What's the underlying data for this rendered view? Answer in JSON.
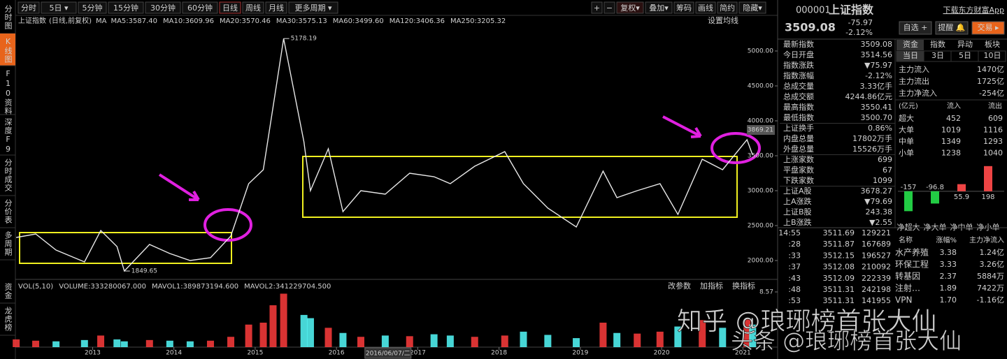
{
  "toolbar": {
    "periods": [
      {
        "label": "分时"
      },
      {
        "label": "5日 ▾"
      },
      {
        "label": "5分钟"
      },
      {
        "label": "15分钟"
      },
      {
        "label": "30分钟"
      },
      {
        "label": "60分钟"
      },
      {
        "label": "日线",
        "active": true
      },
      {
        "label": "周线"
      },
      {
        "label": "月线"
      },
      {
        "label": "更多周期 ▾"
      }
    ],
    "tools": [
      {
        "label": "+"
      },
      {
        "label": "−"
      },
      {
        "label": "复权▾",
        "active": true
      },
      {
        "label": "叠加▾"
      },
      {
        "label": "筹码"
      },
      {
        "label": "画线"
      },
      {
        "label": "简约"
      },
      {
        "label": "隐藏▾"
      }
    ]
  },
  "sidebar": {
    "views": [
      {
        "label": "分时图"
      },
      {
        "label": "K线图",
        "active": true
      },
      {
        "label": "F10资料"
      },
      {
        "label": "深度F9"
      },
      {
        "label": "分时成交"
      },
      {
        "label": "分价表"
      },
      {
        "label": "多周期"
      }
    ],
    "panels": [
      {
        "label": "资金"
      },
      {
        "label": "龙虎榜"
      }
    ]
  },
  "chart_data": [
    {
      "type": "line",
      "title": "上证指数",
      "subtitle": "(日线,前复权)",
      "legend_prefix": "MA",
      "ma": [
        {
          "label": "MA5:3587.40",
          "color": "#f0f0f0"
        },
        {
          "label": "MA10:3609.96",
          "color": "#f0f040"
        },
        {
          "label": "MA20:3570.46",
          "color": "#ff40ff"
        },
        {
          "label": "MA30:3575.13",
          "color": "#40ff40"
        },
        {
          "label": "MA60:3499.60",
          "color": "#c8c8c8"
        },
        {
          "label": "MA120:3406.36",
          "color": "#a0e0ff"
        },
        {
          "label": "MA250:3205.32",
          "color": "#e8e8e8"
        }
      ],
      "settings_label": "设置均线",
      "x": [
        2012.06,
        2012.3,
        2012.55,
        2012.9,
        2013.1,
        2013.3,
        2013.39,
        2013.7,
        2013.95,
        2014.2,
        2014.45,
        2014.7,
        2014.92,
        2015.1,
        2015.22,
        2015.35,
        2015.6,
        2015.68,
        2015.9,
        2016.08,
        2016.3,
        2016.6,
        2016.9,
        2017.2,
        2017.4,
        2017.7,
        2018.07,
        2018.3,
        2018.6,
        2018.95,
        2019.28,
        2019.45,
        2019.7,
        2019.98,
        2020.2,
        2020.5,
        2020.75,
        2021.05,
        2021.12
      ],
      "values": [
        2330,
        2380,
        2150,
        1980,
        2430,
        2200,
        1849.65,
        2230,
        2100,
        2000,
        2040,
        2350,
        3100,
        3300,
        4200,
        5178.19,
        3700,
        3000,
        3600,
        2700,
        3000,
        2950,
        3250,
        3200,
        3100,
        3350,
        3559,
        3100,
        2750,
        2480,
        3280,
        2900,
        3000,
        3100,
        2660,
        3450,
        3300,
        3730,
        3509.08
      ],
      "color": "#e8e8e8",
      "xlim": [
        2012.05,
        2021.41
      ],
      "ylim": [
        1730,
        5510
      ],
      "xticks": [
        2013,
        2014,
        2015,
        2016,
        2017,
        2018,
        2019,
        2020,
        2021
      ],
      "yticks": [
        {
          "value": 2000,
          "label": "2000.00"
        },
        {
          "value": 2500,
          "label": "2500.00"
        },
        {
          "value": 3000,
          "label": "3000.00"
        },
        {
          "value": 3500,
          "label": "3500.00"
        },
        {
          "value": 4000,
          "label": "4000.00"
        },
        {
          "value": 4500,
          "label": "4500.00"
        },
        {
          "value": 5000,
          "label": "5000.00"
        }
      ],
      "annotations": [
        {
          "x": 2015.35,
          "y": 5178.19
        },
        {
          "x": 2013.39,
          "y": 1849.65
        }
      ],
      "last_marker": 3869.21,
      "cursor_label": "2016/06/07/二"
    },
    {
      "type": "bar",
      "legend": [
        {
          "label": "VOL(5,10)",
          "color": "#a0a0a0"
        },
        {
          "label": "VOLUME:333280067.000",
          "color": "#f0f0f0"
        },
        {
          "label": "MAVOL1:389873194.600",
          "color": "#f0f040"
        },
        {
          "label": "MAVOL2:341229704.500",
          "color": "#ff40ff"
        }
      ],
      "buttons": [
        "改参数",
        "加指标",
        "换指标"
      ],
      "values": [
        1.2,
        1.0,
        0.9,
        1.1,
        1.8,
        1.2,
        0.9,
        1.1,
        1.0,
        0.9,
        1.0,
        1.6,
        3.5,
        3.8,
        6.5,
        8.3,
        5.0,
        4.5,
        3.0,
        2.2,
        1.6,
        1.8,
        1.7,
        2.0,
        1.8,
        1.6,
        1.8,
        2.4,
        1.9,
        1.4,
        3.8,
        2.2,
        2.1,
        2.4,
        3.2,
        4.2,
        3.0,
        4.3,
        3.5
      ],
      "up_color": "#ff3c3c",
      "down_color": "#54fcfc",
      "ylim": [
        0,
        10.52
      ],
      "yticks": [
        8.57
      ]
    }
  ],
  "quote": {
    "code": "000001",
    "name": "上证指数",
    "app_link": "下载东方财富App",
    "price": "3509.08",
    "change": "-75.97",
    "change_pct": "-2.12%",
    "buttons": [
      "自选 +",
      "提醒 🔔",
      "交易 ▸"
    ]
  },
  "stats": [
    [
      "最新指数",
      "3509.08",
      "#22dd22"
    ],
    [
      "今日开盘",
      "3514.56",
      "#22dd22"
    ],
    [
      "指数涨跌",
      "▼75.97",
      "#22dd22"
    ],
    [
      "指数涨幅",
      "-2.12%",
      "#22dd22"
    ],
    [
      "总成交量",
      "3.33亿手",
      "#f0f0f0"
    ],
    [
      "总成交额",
      "4244.86亿元",
      "#f0f0f0"
    ],
    [
      "最高指数",
      "3550.41",
      "#22dd22"
    ],
    [
      "最低指数",
      "3500.70",
      "#22dd22"
    ],
    [
      "上证换手",
      "0.86%",
      "#f0f0f0"
    ],
    [
      "内盘总量",
      "17802万手",
      "#f0f0f0"
    ],
    [
      "外盘总量",
      "15526万手",
      "#ff3c3c"
    ],
    [
      "上涨家数",
      "699",
      "#ff3c3c"
    ],
    [
      "平盘家数",
      "67",
      "#f0f0f0"
    ],
    [
      "下跌家数",
      "1099",
      "#22dd22"
    ],
    [
      "上证A股",
      "3678.27",
      "#22dd22"
    ],
    [
      "上A涨跌",
      "▼79.69",
      "#22dd22"
    ],
    [
      "上证B股",
      "243.38",
      "#22dd22"
    ],
    [
      "上B涨跌",
      "▼2.55",
      "#22dd22"
    ]
  ],
  "tabs": [
    "资金",
    "指数",
    "异动",
    "板块"
  ],
  "subtabs": [
    "当日",
    "3日",
    "5日",
    "10日"
  ],
  "flow": [
    [
      "主力流入",
      "1470亿",
      "#ff3c3c"
    ],
    [
      "主力流出",
      "1725亿",
      "#ff3c3c"
    ],
    [
      "主力净流入",
      "-254亿",
      "#22dd22"
    ]
  ],
  "flow_table": {
    "header": [
      "(亿元)",
      "流入",
      "流出"
    ],
    "rows": [
      [
        "超大",
        "452",
        "609"
      ],
      [
        "大单",
        "1019",
        "1116"
      ],
      [
        "中单",
        "1349",
        "1293"
      ],
      [
        "小单",
        "1238",
        "1040"
      ]
    ]
  },
  "net_flow": {
    "categories": [
      "净超大",
      "净大单",
      "净中单",
      "净小单"
    ],
    "values": [
      -157,
      -96.8,
      55.9,
      198
    ],
    "ylim": [
      -210,
      230
    ],
    "up_color": "#ee4444",
    "down_color": "#22cc44"
  },
  "trades": [
    [
      "14:55",
      "3511.69",
      "129221"
    ],
    [
      ":28",
      "3511.87",
      "167689"
    ],
    [
      ":33",
      "3512.15",
      "196527"
    ],
    [
      ":37",
      "3512.08",
      "210092"
    ],
    [
      ":43",
      "3512.09",
      "222339"
    ],
    [
      ":48",
      "3511.31",
      "242198"
    ],
    [
      ":53",
      "3511.31",
      "141955"
    ]
  ],
  "sectors": {
    "header": [
      "名称",
      "涨幅%",
      "主力净流入"
    ],
    "rows": [
      [
        "水产养殖",
        "3.38",
        "1.24亿",
        "#ff3c3c"
      ],
      [
        "环保工程",
        "3.33",
        "3.26亿",
        "#ff3c3c"
      ],
      [
        "转基因",
        "2.37",
        "5884万",
        "#ff3c3c"
      ],
      [
        "注射…",
        "1.89",
        "7422万",
        "#ff3c3c"
      ],
      [
        "VPN",
        "1.70",
        "-1.16亿",
        "#22dd22"
      ]
    ]
  },
  "watermarks": [
    "知乎 @琅琊榜首张大仙",
    "头条 @琅琊榜首张大仙"
  ]
}
